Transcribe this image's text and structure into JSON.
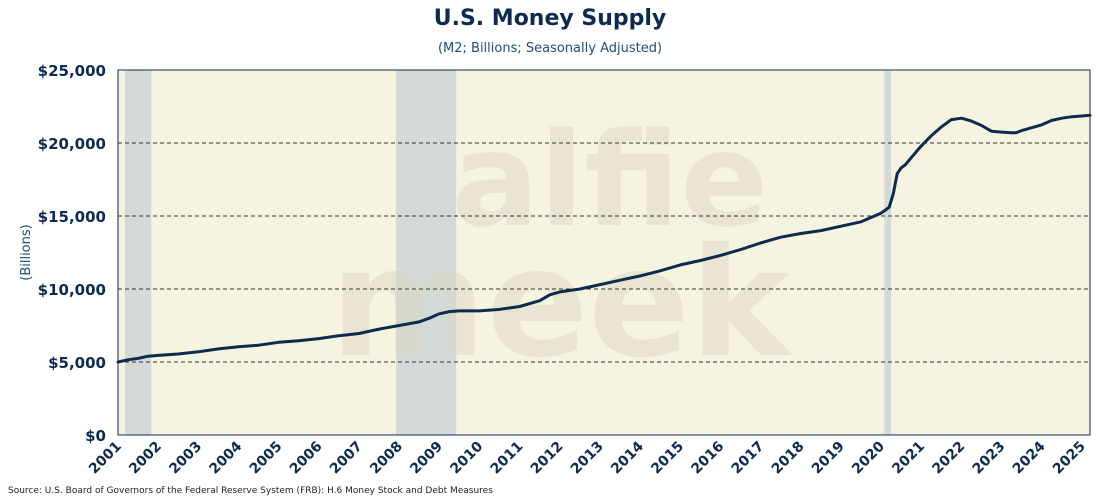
{
  "title": "U.S. Money Supply",
  "subtitle": "(M2; Billions; Seasonally Adjusted)",
  "source": "Source: U.S. Board of Governors of the Federal Reserve System (FRB): H.6 Money Stock and Debt Measures",
  "watermark": "alfie meek",
  "colors": {
    "line": "#0d2b4f",
    "plot_background": "#f7f3e1",
    "recession": "#d4dad7",
    "text": "#0d2b4f"
  },
  "chart_data": {
    "type": "line",
    "title": "U.S. Money Supply",
    "subtitle": "(M2; Billions; Seasonally Adjusted)",
    "ylabel": "(Billions)",
    "xlabel": "",
    "xlim": [
      2001,
      2025.2
    ],
    "ylim": [
      0,
      25000
    ],
    "y_ticks": [
      {
        "value": 0,
        "label": "$0"
      },
      {
        "value": 5000,
        "label": "$5,000"
      },
      {
        "value": 10000,
        "label": "$10,000"
      },
      {
        "value": 15000,
        "label": "$15,000"
      },
      {
        "value": 20000,
        "label": "$20,000"
      },
      {
        "value": 25000,
        "label": "$25,000"
      }
    ],
    "x_ticks": [
      "2001",
      "2002",
      "2003",
      "2004",
      "2005",
      "2006",
      "2007",
      "2008",
      "2009",
      "2010",
      "2011",
      "2012",
      "2013",
      "2014",
      "2015",
      "2016",
      "2017",
      "2018",
      "2019",
      "2020",
      "2021",
      "2022",
      "2023",
      "2024",
      "2025"
    ],
    "grid": "horizontal dashed",
    "recessions": [
      [
        2001.17,
        2001.83
      ],
      [
        2007.92,
        2009.42
      ],
      [
        2020.08,
        2020.25
      ]
    ],
    "series": [
      {
        "x": [
          2001,
          2001.25,
          2001.5,
          2001.75,
          2002,
          2002.5,
          2003,
          2003.5,
          2004,
          2004.5,
          2005,
          2005.5,
          2006,
          2006.5,
          2007,
          2007.5,
          2008,
          2008.5,
          2008.75,
          2009,
          2009.25,
          2009.5,
          2010,
          2010.5,
          2011,
          2011.5,
          2011.75,
          2012,
          2012.5,
          2013,
          2013.5,
          2014,
          2014.5,
          2015,
          2015.5,
          2016,
          2016.5,
          2017,
          2017.5,
          2018,
          2018.5,
          2019,
          2019.5,
          2019.75,
          2020,
          2020.1,
          2020.2,
          2020.3,
          2020.4,
          2020.5,
          2020.6,
          2020.75,
          2021,
          2021.25,
          2021.5,
          2021.75,
          2022,
          2022.25,
          2022.5,
          2022.75,
          2023,
          2023.25,
          2023.35,
          2023.5,
          2023.75,
          2024,
          2024.25,
          2024.5,
          2024.75,
          2025,
          2025.2
        ],
        "y": [
          5000,
          5150,
          5250,
          5400,
          5450,
          5550,
          5700,
          5900,
          6050,
          6150,
          6350,
          6450,
          6600,
          6800,
          6950,
          7250,
          7500,
          7750,
          8000,
          8300,
          8450,
          8500,
          8500,
          8600,
          8800,
          9200,
          9600,
          9800,
          10000,
          10300,
          10600,
          10900,
          11250,
          11650,
          11950,
          12300,
          12700,
          13150,
          13550,
          13800,
          14000,
          14300,
          14600,
          14900,
          15200,
          15400,
          15600,
          16500,
          17900,
          18300,
          18500,
          19000,
          19800,
          20500,
          21100,
          21600,
          21700,
          21500,
          21200,
          20800,
          20750,
          20700,
          20700,
          20850,
          21050,
          21250,
          21550,
          21700,
          21800,
          21850,
          21900
        ]
      }
    ]
  }
}
